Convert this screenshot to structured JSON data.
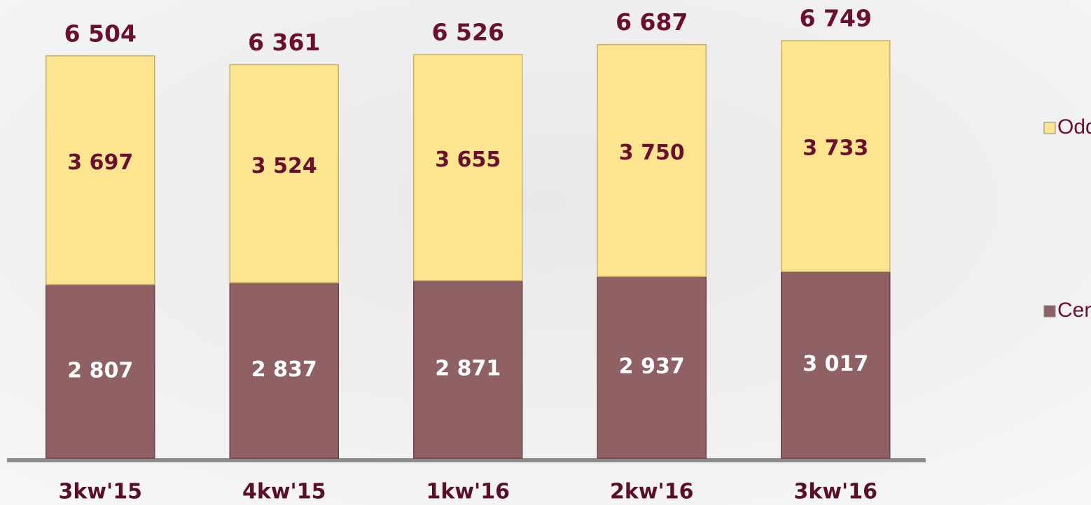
{
  "chart_data": {
    "type": "stacked_bar",
    "categories": [
      "3kw'15",
      "4kw'15",
      "1kw'16",
      "2kw'16",
      "3kw'16"
    ],
    "series": [
      {
        "name": "Centrala",
        "color": "#8f6064",
        "values": [
          2807,
          2837,
          2871,
          2937,
          3017
        ],
        "value_labels": [
          "2 807",
          "2 837",
          "2 871",
          "2 937",
          "3 017"
        ]
      },
      {
        "name": "Oddziały",
        "color": "#fde58f",
        "values": [
          3697,
          3524,
          3655,
          3750,
          3733
        ],
        "value_labels": [
          "3 697",
          "3 524",
          "3 655",
          "3 750",
          "3 733"
        ]
      }
    ],
    "totals": {
      "values": [
        6504,
        6361,
        6526,
        6687,
        6749
      ],
      "value_labels": [
        "6 504",
        "6 361",
        "6 526",
        "6 687",
        "6 749"
      ]
    },
    "ylim": [
      0,
      7000
    ],
    "legend": "right"
  }
}
